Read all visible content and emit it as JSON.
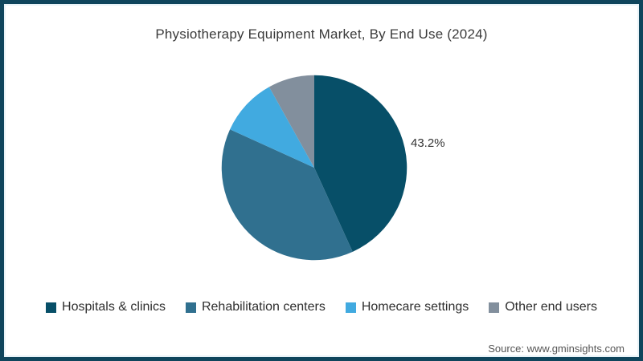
{
  "title": "Physiotherapy Equipment Market, By End Use (2024)",
  "source": "Source: www.gminsights.com",
  "frame": {
    "border_color": "#0f455c",
    "background": "#ffffff"
  },
  "chart_data": {
    "type": "pie",
    "title": "Physiotherapy Equipment Market, By End Use (2024)",
    "unit": "%",
    "start_angle_deg": 0,
    "direction": "clockwise",
    "legend_position": "bottom",
    "series": [
      {
        "name": "Hospitals & clinics",
        "value": 43.2,
        "color": "#074f68",
        "label": "43.2%",
        "label_visible": true
      },
      {
        "name": "Rehabilitation centers",
        "value": 38.6,
        "color": "#30708f",
        "label_visible": false
      },
      {
        "name": "Homecare settings",
        "value": 10.1,
        "color": "#41aae0",
        "label_visible": false
      },
      {
        "name": "Other end users",
        "value": 8.1,
        "color": "#828f9d",
        "label_visible": false
      }
    ],
    "annotations": [
      {
        "text": "43.2%",
        "slice": "Hospitals & clinics",
        "position": "right-of-chart"
      }
    ]
  }
}
